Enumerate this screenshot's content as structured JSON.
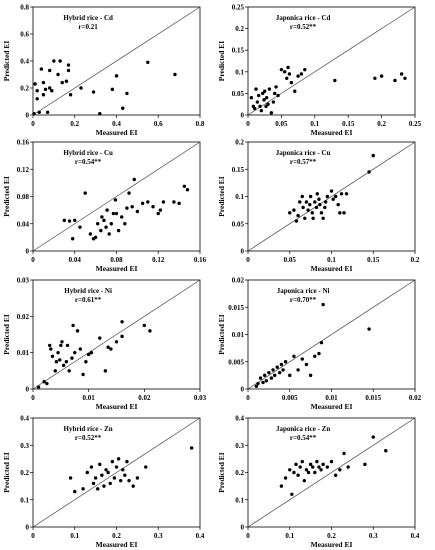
{
  "chart_data": [
    {
      "type": "scatter",
      "title": "Hybrid rice - Cd",
      "annotation": "r=0.21",
      "xlabel": "Measured EI",
      "ylabel": "Predicted EI",
      "xlim": [
        0,
        0.8
      ],
      "ylim": [
        0,
        0.8
      ],
      "xticks": [
        "0",
        "0.2",
        "0.4",
        "0.6",
        "0.8"
      ],
      "yticks": [
        "0",
        "0.2",
        "0.4",
        "0.6",
        "0.8"
      ],
      "reference_line": "1:1",
      "points": [
        [
          0.005,
          0.01
        ],
        [
          0.01,
          0.23
        ],
        [
          0.02,
          0.12
        ],
        [
          0.02,
          0.18
        ],
        [
          0.03,
          0.02
        ],
        [
          0.04,
          0.34
        ],
        [
          0.05,
          0.15
        ],
        [
          0.05,
          0.24
        ],
        [
          0.06,
          0.19
        ],
        [
          0.07,
          0.02
        ],
        [
          0.08,
          0.33
        ],
        [
          0.08,
          0.2
        ],
        [
          0.09,
          0.18
        ],
        [
          0.1,
          0.4
        ],
        [
          0.12,
          0.3
        ],
        [
          0.13,
          0.4
        ],
        [
          0.14,
          0.24
        ],
        [
          0.16,
          0.25
        ],
        [
          0.17,
          0.33
        ],
        [
          0.17,
          0.37
        ],
        [
          0.18,
          0.15
        ],
        [
          0.23,
          0.2
        ],
        [
          0.29,
          0.17
        ],
        [
          0.32,
          0.01
        ],
        [
          0.38,
          0.19
        ],
        [
          0.4,
          0.29
        ],
        [
          0.43,
          0.05
        ],
        [
          0.45,
          0.16
        ],
        [
          0.55,
          0.39
        ],
        [
          0.68,
          0.3
        ]
      ]
    },
    {
      "type": "scatter",
      "title": "Japonica rice - Cd",
      "annotation": "r=0.52**",
      "xlabel": "Measured EI",
      "ylabel": "Predicted EI",
      "xlim": [
        0,
        0.25
      ],
      "ylim": [
        0,
        0.25
      ],
      "xticks": [
        "0",
        "0.05",
        "0.1",
        "0.15",
        "0.2",
        "0.25"
      ],
      "yticks": [
        "0",
        "0.05",
        "0.1",
        "0.15",
        "0.2",
        "0.25"
      ],
      "reference_line": "1:1",
      "points": [
        [
          0.005,
          0.04
        ],
        [
          0.008,
          0.02
        ],
        [
          0.01,
          0.015
        ],
        [
          0.012,
          0.06
        ],
        [
          0.014,
          0.03
        ],
        [
          0.016,
          0.045
        ],
        [
          0.018,
          0.02
        ],
        [
          0.02,
          0.01
        ],
        [
          0.022,
          0.05
        ],
        [
          0.024,
          0.035
        ],
        [
          0.025,
          0.055
        ],
        [
          0.027,
          0.02
        ],
        [
          0.028,
          0.04
        ],
        [
          0.03,
          0.025
        ],
        [
          0.032,
          0.06
        ],
        [
          0.035,
          0.005
        ],
        [
          0.038,
          0.03
        ],
        [
          0.04,
          0.05
        ],
        [
          0.042,
          0.065
        ],
        [
          0.045,
          0.045
        ],
        [
          0.05,
          0.105
        ],
        [
          0.055,
          0.1
        ],
        [
          0.058,
          0.085
        ],
        [
          0.06,
          0.11
        ],
        [
          0.062,
          0.095
        ],
        [
          0.065,
          0.075
        ],
        [
          0.07,
          0.055
        ],
        [
          0.075,
          0.09
        ],
        [
          0.08,
          0.095
        ],
        [
          0.085,
          0.105
        ],
        [
          0.13,
          0.08
        ],
        [
          0.19,
          0.085
        ],
        [
          0.2,
          0.09
        ],
        [
          0.22,
          0.08
        ],
        [
          0.23,
          0.095
        ],
        [
          0.235,
          0.085
        ]
      ]
    },
    {
      "type": "scatter",
      "title": "Hybrid rice - Cu",
      "annotation": "r=0.54**",
      "xlabel": "Measured EI",
      "ylabel": "Predicted EI",
      "xlim": [
        0,
        0.16
      ],
      "ylim": [
        0,
        0.16
      ],
      "xticks": [
        "0",
        "0.04",
        "0.08",
        "0.12",
        "0.16"
      ],
      "yticks": [
        "0",
        "0.04",
        "0.08",
        "0.12",
        "0.16"
      ],
      "reference_line": "1:1",
      "points": [
        [
          0.03,
          0.045
        ],
        [
          0.035,
          0.044
        ],
        [
          0.038,
          0.018
        ],
        [
          0.04,
          0.045
        ],
        [
          0.045,
          0.035
        ],
        [
          0.05,
          0.085
        ],
        [
          0.055,
          0.025
        ],
        [
          0.058,
          0.018
        ],
        [
          0.06,
          0.02
        ],
        [
          0.062,
          0.04
        ],
        [
          0.065,
          0.03
        ],
        [
          0.066,
          0.05
        ],
        [
          0.068,
          0.045
        ],
        [
          0.07,
          0.035
        ],
        [
          0.071,
          0.06
        ],
        [
          0.073,
          0.025
        ],
        [
          0.075,
          0.04
        ],
        [
          0.077,
          0.055
        ],
        [
          0.079,
          0.075
        ],
        [
          0.08,
          0.055
        ],
        [
          0.082,
          0.03
        ],
        [
          0.085,
          0.05
        ],
        [
          0.088,
          0.04
        ],
        [
          0.09,
          0.063
        ],
        [
          0.092,
          0.085
        ],
        [
          0.095,
          0.065
        ],
        [
          0.097,
          0.105
        ],
        [
          0.1,
          0.058
        ],
        [
          0.105,
          0.07
        ],
        [
          0.11,
          0.072
        ],
        [
          0.115,
          0.065
        ],
        [
          0.12,
          0.055
        ],
        [
          0.122,
          0.06
        ],
        [
          0.125,
          0.072
        ],
        [
          0.135,
          0.072
        ],
        [
          0.14,
          0.07
        ],
        [
          0.145,
          0.095
        ],
        [
          0.148,
          0.09
        ]
      ]
    },
    {
      "type": "scatter",
      "title": "Japonica rice - Cu",
      "annotation": "r=0.57**",
      "xlabel": "Measured EI",
      "ylabel": "Predicted EI",
      "xlim": [
        0,
        0.2
      ],
      "ylim": [
        0,
        0.2
      ],
      "xticks": [
        "0",
        "0.05",
        "0.1",
        "0.15",
        "0.2"
      ],
      "yticks": [
        "0",
        "0.05",
        "0.1",
        "0.15",
        "0.2"
      ],
      "reference_line": "1:1",
      "points": [
        [
          0.05,
          0.07
        ],
        [
          0.055,
          0.075
        ],
        [
          0.058,
          0.055
        ],
        [
          0.06,
          0.065
        ],
        [
          0.062,
          0.09
        ],
        [
          0.065,
          0.1
        ],
        [
          0.066,
          0.08
        ],
        [
          0.068,
          0.06
        ],
        [
          0.07,
          0.09
        ],
        [
          0.072,
          0.075
        ],
        [
          0.074,
          0.085
        ],
        [
          0.075,
          0.1
        ],
        [
          0.077,
          0.07
        ],
        [
          0.078,
          0.06
        ],
        [
          0.08,
          0.09
        ],
        [
          0.082,
          0.08
        ],
        [
          0.083,
          0.105
        ],
        [
          0.085,
          0.095
        ],
        [
          0.086,
          0.085
        ],
        [
          0.088,
          0.07
        ],
        [
          0.09,
          0.06
        ],
        [
          0.092,
          0.08
        ],
        [
          0.093,
          0.09
        ],
        [
          0.095,
          0.1
        ],
        [
          0.1,
          0.11
        ],
        [
          0.102,
          0.095
        ],
        [
          0.105,
          0.1
        ],
        [
          0.108,
          0.085
        ],
        [
          0.11,
          0.07
        ],
        [
          0.112,
          0.105
        ],
        [
          0.115,
          0.07
        ],
        [
          0.118,
          0.105
        ],
        [
          0.145,
          0.145
        ],
        [
          0.15,
          0.175
        ]
      ]
    },
    {
      "type": "scatter",
      "title": "Hybrid rice - Ni",
      "annotation": "r=0.61**",
      "xlabel": "Measured EI",
      "ylabel": "Predicted EI",
      "xlim": [
        0,
        0.03
      ],
      "ylim": [
        0,
        0.03
      ],
      "xticks": [
        "0",
        "0.01",
        "0.02",
        "0.03"
      ],
      "yticks": [
        "0",
        "0.01",
        "0.02",
        "0.03"
      ],
      "reference_line": "1:1",
      "points": [
        [
          0.001,
          0.0005
        ],
        [
          0.002,
          0.002
        ],
        [
          0.0025,
          0.0015
        ],
        [
          0.003,
          0.012
        ],
        [
          0.0032,
          0.011
        ],
        [
          0.0035,
          0.009
        ],
        [
          0.004,
          0.005
        ],
        [
          0.0042,
          0.0075
        ],
        [
          0.0045,
          0.01
        ],
        [
          0.0048,
          0.008
        ],
        [
          0.005,
          0.012
        ],
        [
          0.0052,
          0.013
        ],
        [
          0.0055,
          0.0065
        ],
        [
          0.006,
          0.0075
        ],
        [
          0.0062,
          0.012
        ],
        [
          0.0065,
          0.005
        ],
        [
          0.007,
          0.0085
        ],
        [
          0.0072,
          0.0175
        ],
        [
          0.0075,
          0.01
        ],
        [
          0.008,
          0.016
        ],
        [
          0.0085,
          0.011
        ],
        [
          0.009,
          0.004
        ],
        [
          0.0095,
          0.0075
        ],
        [
          0.01,
          0.0095
        ],
        [
          0.0105,
          0.01
        ],
        [
          0.012,
          0.014
        ],
        [
          0.013,
          0.005
        ],
        [
          0.0135,
          0.0115
        ],
        [
          0.014,
          0.011
        ],
        [
          0.015,
          0.013
        ],
        [
          0.016,
          0.0145
        ],
        [
          0.016,
          0.0185
        ],
        [
          0.02,
          0.0175
        ],
        [
          0.021,
          0.016
        ]
      ]
    },
    {
      "type": "scatter",
      "title": "Japonica rice - Ni",
      "annotation": "r=0.70**",
      "xlabel": "Measured EI",
      "ylabel": "Predicted EI",
      "xlim": [
        0,
        0.02
      ],
      "ylim": [
        0,
        0.02
      ],
      "xticks": [
        "0",
        "0.005",
        "0.01",
        "0.015",
        "0.02"
      ],
      "yticks": [
        "0",
        "0.005",
        "0.01",
        "0.015",
        "0.02"
      ],
      "reference_line": "1:1",
      "points": [
        [
          0.001,
          0.0005
        ],
        [
          0.0012,
          0.001
        ],
        [
          0.0015,
          0.002
        ],
        [
          0.0018,
          0.0012
        ],
        [
          0.002,
          0.0025
        ],
        [
          0.0022,
          0.0015
        ],
        [
          0.0025,
          0.003
        ],
        [
          0.0028,
          0.002
        ],
        [
          0.003,
          0.0035
        ],
        [
          0.0032,
          0.0025
        ],
        [
          0.0035,
          0.004
        ],
        [
          0.0038,
          0.003
        ],
        [
          0.004,
          0.0045
        ],
        [
          0.0042,
          0.0035
        ],
        [
          0.0045,
          0.005
        ],
        [
          0.005,
          0.0025
        ],
        [
          0.0055,
          0.006
        ],
        [
          0.006,
          0.0035
        ],
        [
          0.0065,
          0.0055
        ],
        [
          0.007,
          0.0045
        ],
        [
          0.0075,
          0.0025
        ],
        [
          0.008,
          0.006
        ],
        [
          0.0085,
          0.0065
        ],
        [
          0.009,
          0.0155
        ],
        [
          0.0088,
          0.0085
        ],
        [
          0.0145,
          0.011
        ]
      ]
    },
    {
      "type": "scatter",
      "title": "Hybrid rice - Zn",
      "annotation": "r=0.52**",
      "xlabel": "Measured EI",
      "ylabel": "Predicted EI",
      "xlim": [
        0,
        0.4
      ],
      "ylim": [
        0,
        0.4
      ],
      "xticks": [
        "0",
        "0.1",
        "0.2",
        "0.3",
        "0.4"
      ],
      "yticks": [
        "0",
        "0.1",
        "0.2",
        "0.3",
        "0.4"
      ],
      "reference_line": "1:1",
      "points": [
        [
          0.09,
          0.18
        ],
        [
          0.1,
          0.13
        ],
        [
          0.12,
          0.14
        ],
        [
          0.13,
          0.2
        ],
        [
          0.14,
          0.22
        ],
        [
          0.145,
          0.16
        ],
        [
          0.15,
          0.18
        ],
        [
          0.155,
          0.14
        ],
        [
          0.16,
          0.23
        ],
        [
          0.165,
          0.19
        ],
        [
          0.17,
          0.15
        ],
        [
          0.175,
          0.21
        ],
        [
          0.18,
          0.2
        ],
        [
          0.185,
          0.16
        ],
        [
          0.19,
          0.24
        ],
        [
          0.195,
          0.18
        ],
        [
          0.2,
          0.22
        ],
        [
          0.205,
          0.25
        ],
        [
          0.21,
          0.17
        ],
        [
          0.215,
          0.21
        ],
        [
          0.22,
          0.19
        ],
        [
          0.225,
          0.24
        ],
        [
          0.23,
          0.17
        ],
        [
          0.24,
          0.15
        ],
        [
          0.25,
          0.18
        ],
        [
          0.27,
          0.22
        ],
        [
          0.38,
          0.29
        ]
      ]
    },
    {
      "type": "scatter",
      "title": "Japonica rice - Zn",
      "annotation": "r=0.54**",
      "xlabel": "Measured EI",
      "ylabel": "Predicted EI",
      "xlim": [
        0,
        0.4
      ],
      "ylim": [
        0,
        0.4
      ],
      "xticks": [
        "0",
        "0.1",
        "0.2",
        "0.3",
        "0.4"
      ],
      "yticks": [
        "0",
        "0.1",
        "0.2",
        "0.3",
        "0.4"
      ],
      "reference_line": "1:1",
      "points": [
        [
          0.08,
          0.15
        ],
        [
          0.09,
          0.18
        ],
        [
          0.1,
          0.21
        ],
        [
          0.105,
          0.12
        ],
        [
          0.11,
          0.2
        ],
        [
          0.115,
          0.23
        ],
        [
          0.12,
          0.19
        ],
        [
          0.125,
          0.22
        ],
        [
          0.13,
          0.24
        ],
        [
          0.135,
          0.17
        ],
        [
          0.14,
          0.21
        ],
        [
          0.145,
          0.2
        ],
        [
          0.15,
          0.23
        ],
        [
          0.155,
          0.22
        ],
        [
          0.16,
          0.2
        ],
        [
          0.165,
          0.24
        ],
        [
          0.17,
          0.22
        ],
        [
          0.175,
          0.21
        ],
        [
          0.18,
          0.23
        ],
        [
          0.19,
          0.22
        ],
        [
          0.2,
          0.24
        ],
        [
          0.21,
          0.19
        ],
        [
          0.22,
          0.21
        ],
        [
          0.23,
          0.27
        ],
        [
          0.24,
          0.22
        ],
        [
          0.28,
          0.23
        ],
        [
          0.3,
          0.33
        ],
        [
          0.33,
          0.28
        ]
      ]
    }
  ]
}
